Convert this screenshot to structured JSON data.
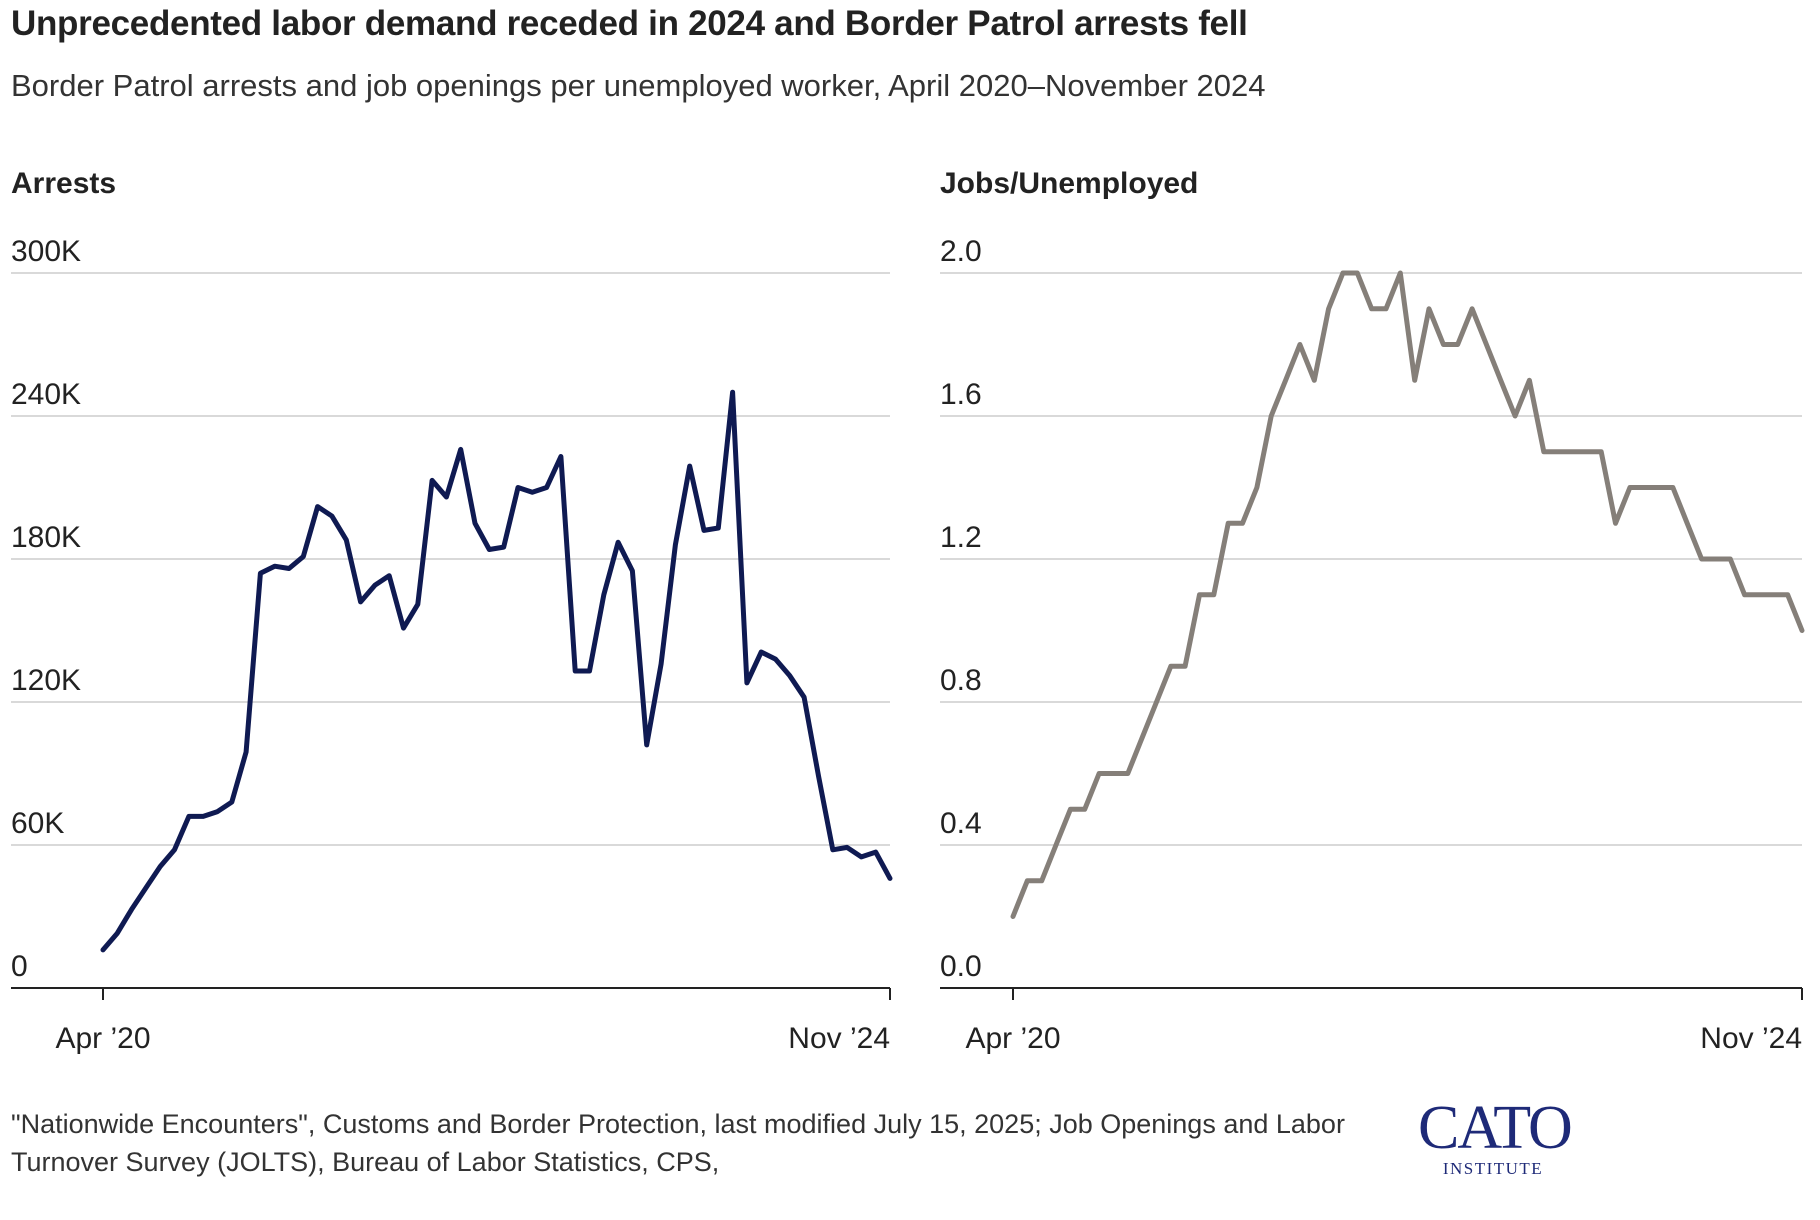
{
  "title": "Unprecedented labor demand receded in 2024 and Border Patrol arrests fell",
  "subtitle": "Border Patrol arrests and job openings per unemployed worker, April 2020–November 2024",
  "source": "\"Nationwide Encounters\", Customs and Border Protection, last modified July 15, 2025; Job Openings and Labor Turnover Survey (JOLTS), Bureau of Labor Statistics, CPS,",
  "logo": {
    "main": "CATO",
    "sub": "INSTITUTE"
  },
  "colors": {
    "arrests": "#0f1a52",
    "jobs": "#857f79",
    "grid": "#d9d9d9",
    "axis": "#222222"
  },
  "chart_data": [
    {
      "type": "line",
      "panel_label": "Arrests",
      "x_start_label": "Apr ’20",
      "x_end_label": "Nov ’24",
      "ylim": [
        0,
        300000
      ],
      "yticks": [
        0,
        60000,
        120000,
        180000,
        240000,
        300000
      ],
      "ytick_labels": [
        "0",
        "60K",
        "120K",
        "180K",
        "240K",
        "300K"
      ],
      "series": [
        {
          "name": "Border Patrol arrests",
          "values": [
            16000,
            23000,
            33000,
            42000,
            51000,
            58000,
            72000,
            72000,
            74000,
            78000,
            99000,
            174000,
            177000,
            176000,
            181000,
            202000,
            198000,
            188000,
            162000,
            169000,
            173000,
            151000,
            161000,
            213000,
            206000,
            226000,
            195000,
            184000,
            185000,
            210000,
            208000,
            210000,
            223000,
            133000,
            133000,
            165000,
            187000,
            175000,
            102000,
            136000,
            186000,
            219000,
            192000,
            193000,
            250000,
            128000,
            141000,
            138000,
            131000,
            122000,
            89000,
            58000,
            59000,
            55000,
            57000,
            46000
          ]
        }
      ]
    },
    {
      "type": "line",
      "panel_label": "Jobs/Unemployed",
      "x_start_label": "Apr ’20",
      "x_end_label": "Nov ’24",
      "ylim": [
        0,
        2.0
      ],
      "yticks": [
        0,
        0.4,
        0.8,
        1.2,
        1.6,
        2.0
      ],
      "ytick_labels": [
        "0.0",
        "0.4",
        "0.8",
        "1.2",
        "1.6",
        "2.0"
      ],
      "series": [
        {
          "name": "Job openings per unemployed worker",
          "values": [
            0.2,
            0.3,
            0.3,
            0.4,
            0.5,
            0.5,
            0.6,
            0.6,
            0.6,
            0.7,
            0.8,
            0.9,
            0.9,
            1.1,
            1.1,
            1.3,
            1.3,
            1.4,
            1.6,
            1.7,
            1.8,
            1.7,
            1.9,
            2.0,
            2.0,
            1.9,
            1.9,
            2.0,
            1.7,
            1.9,
            1.8,
            1.8,
            1.9,
            1.8,
            1.7,
            1.6,
            1.7,
            1.5,
            1.5,
            1.5,
            1.5,
            1.5,
            1.3,
            1.4,
            1.4,
            1.4,
            1.4,
            1.3,
            1.2,
            1.2,
            1.2,
            1.1,
            1.1,
            1.1,
            1.1,
            1.0
          ]
        }
      ]
    }
  ]
}
